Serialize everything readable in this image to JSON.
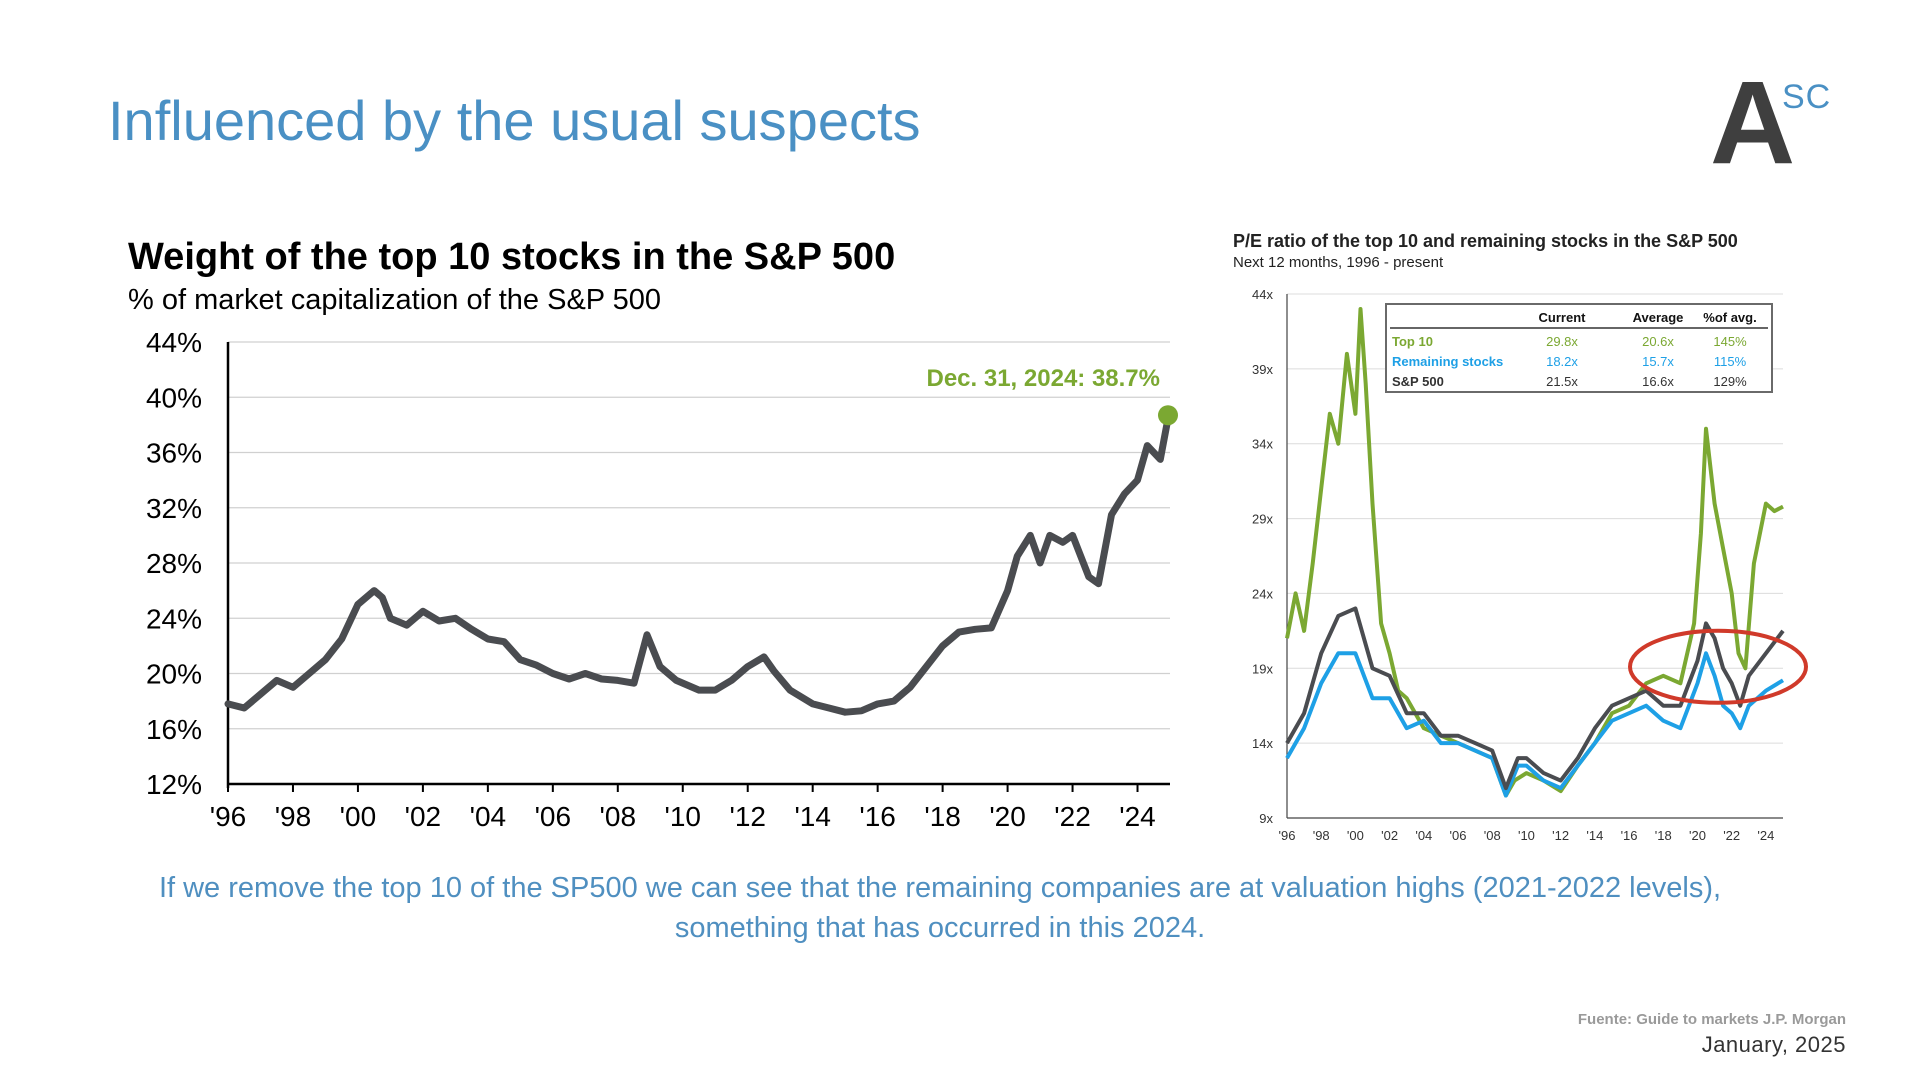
{
  "slide": {
    "title": "Influenced by the usual suspects",
    "logo_letter": "A",
    "logo_superscript": "SC",
    "caption": "If we remove the top 10 of the SP500 we can see that the remaining companies are at valuation highs (2021-2022 levels), something that has occurred in this 2024.",
    "source": "Fuente: Guide to markets J.P. Morgan",
    "date": "January, 2025",
    "colors": {
      "title": "#4a90c4",
      "caption": "#4f8fc0",
      "weight_line": "#4a4c50",
      "top10": "#7ba832",
      "remaining": "#1ea0e6",
      "sp500": "#4a4c50",
      "highlight_ellipse": "#d03a2a"
    }
  },
  "chart_data": [
    {
      "type": "line",
      "title": "Weight of the top 10 stocks in the S&P 500",
      "subtitle": "% of market capitalization of the S&P 500",
      "x_ticks": [
        "'96",
        "'98",
        "'00",
        "'02",
        "'04",
        "'06",
        "'08",
        "'10",
        "'12",
        "'14",
        "'16",
        "'18",
        "'20",
        "'22",
        "'24"
      ],
      "y_ticks": [
        "44%",
        "40%",
        "36%",
        "32%",
        "28%",
        "24%",
        "20%",
        "16%",
        "12%"
      ],
      "ylim": [
        12,
        44
      ],
      "xlim": [
        1996,
        2025
      ],
      "grid": true,
      "annotation": "Dec. 31, 2024: 38.7%",
      "series": [
        {
          "x": [
            1996,
            1996.5,
            1997,
            1997.5,
            1998,
            1998.5,
            1999,
            1999.5,
            2000,
            2000.5,
            2000.75,
            2001,
            2001.5,
            2002,
            2002.5,
            2003,
            2003.5,
            2004,
            2004.5,
            2005,
            2005.5,
            2006,
            2006.5,
            2007,
            2007.5,
            2008,
            2008.5,
            2008.9,
            2009.3,
            2009.8,
            2010.5,
            2011,
            2011.5,
            2012,
            2012.5,
            2012.8,
            2013.3,
            2014,
            2014.5,
            2015,
            2015.5,
            2016,
            2016.5,
            2017,
            2017.5,
            2018,
            2018.5,
            2019,
            2019.5,
            2020,
            2020.3,
            2020.7,
            2021,
            2021.3,
            2021.7,
            2022,
            2022.5,
            2022.8,
            2023.2,
            2023.6,
            2024,
            2024.3,
            2024.7,
            2024.9,
            2025
          ],
          "values": [
            17.8,
            17.5,
            18.5,
            19.5,
            19,
            20,
            21,
            22.5,
            25,
            26,
            25.5,
            24,
            23.5,
            24.5,
            23.8,
            24,
            23.2,
            22.5,
            22.3,
            21,
            20.6,
            20,
            19.6,
            20,
            19.6,
            19.5,
            19.3,
            22.8,
            20.5,
            19.5,
            18.8,
            18.8,
            19.5,
            20.5,
            21.2,
            20.2,
            18.8,
            17.8,
            17.5,
            17.2,
            17.3,
            17.8,
            18,
            19,
            20.5,
            22,
            23,
            23.2,
            23.3,
            26,
            28.5,
            30,
            28,
            30,
            29.5,
            30,
            27,
            26.5,
            31.5,
            33,
            34,
            36.5,
            35.5,
            38,
            38.7
          ]
        }
      ]
    },
    {
      "type": "line",
      "title": "P/E ratio of the top 10 and remaining stocks in the S&P 500",
      "subtitle": "Next 12 months, 1996 - present",
      "x_ticks": [
        "'96",
        "'98",
        "'00",
        "'02",
        "'04",
        "'06",
        "'08",
        "'10",
        "'12",
        "'14",
        "'16",
        "'18",
        "'20",
        "'22",
        "'24"
      ],
      "y_ticks": [
        "44x",
        "39x",
        "34x",
        "29x",
        "24x",
        "19x",
        "14x",
        "9x"
      ],
      "ylim": [
        9,
        44
      ],
      "xlim": [
        1996,
        2025
      ],
      "grid": true,
      "table": {
        "headers": [
          "",
          "Current",
          "Average",
          "%of avg."
        ],
        "rows": [
          {
            "label": "Top 10",
            "current": "29.8x",
            "average": "20.6x",
            "pct": "145%"
          },
          {
            "label": "Remaining stocks",
            "current": "18.2x",
            "average": "15.7x",
            "pct": "115%"
          },
          {
            "label": "S&P 500",
            "current": "21.5x",
            "average": "16.6x",
            "pct": "129%"
          }
        ]
      },
      "series": [
        {
          "label": "Top 10",
          "x": [
            1996,
            1996.5,
            1997,
            1997.5,
            1998,
            1998.5,
            1999,
            1999.5,
            2000,
            2000.3,
            2000.6,
            2001,
            2001.5,
            2002,
            2002.5,
            2003,
            2004,
            2005,
            2006,
            2007,
            2008,
            2008.8,
            2009.3,
            2010,
            2011,
            2012,
            2013,
            2014,
            2015,
            2016,
            2017,
            2018,
            2019,
            2019.8,
            2020.2,
            2020.5,
            2021,
            2021.5,
            2022,
            2022.4,
            2022.8,
            2023.3,
            2024,
            2024.5,
            2025
          ],
          "values": [
            21,
            24,
            21.5,
            26,
            31,
            36,
            34,
            40,
            36,
            43,
            38,
            30,
            22,
            20,
            17.5,
            17,
            15,
            14.5,
            14,
            13.5,
            13,
            10.5,
            11.5,
            12,
            11.5,
            10.8,
            12.5,
            14,
            16,
            16.5,
            18,
            18.5,
            18,
            22,
            28,
            35,
            30,
            27,
            24,
            20,
            19,
            26,
            30,
            29.5,
            29.8
          ]
        },
        {
          "label": "Remaining stocks",
          "x": [
            1996,
            1997,
            1998,
            1999,
            2000,
            2001,
            2002,
            2003,
            2004,
            2005,
            2006,
            2007,
            2008,
            2008.8,
            2009.5,
            2010,
            2011,
            2012,
            2013,
            2014,
            2015,
            2016,
            2017,
            2018,
            2019,
            2020,
            2020.5,
            2021,
            2021.5,
            2022,
            2022.5,
            2023,
            2024,
            2025
          ],
          "values": [
            13,
            15,
            18,
            20,
            20,
            17,
            17,
            15,
            15.5,
            14,
            14,
            13.5,
            13,
            10.5,
            12.5,
            12.5,
            11.5,
            11,
            12.5,
            14,
            15.5,
            16,
            16.5,
            15.5,
            15,
            18,
            20,
            18.5,
            16.5,
            16,
            15,
            16.5,
            17.5,
            18.2
          ]
        },
        {
          "label": "S&P 500",
          "x": [
            1996,
            1997,
            1998,
            1999,
            2000,
            2001,
            2002,
            2003,
            2004,
            2005,
            2006,
            2007,
            2008,
            2008.8,
            2009.5,
            2010,
            2011,
            2012,
            2013,
            2014,
            2015,
            2016,
            2017,
            2018,
            2019,
            2020,
            2020.5,
            2021,
            2021.5,
            2022,
            2022.5,
            2023,
            2024,
            2025
          ],
          "values": [
            14,
            16,
            20,
            22.5,
            23,
            19,
            18.5,
            16,
            16,
            14.5,
            14.5,
            14,
            13.5,
            11,
            13,
            13,
            12,
            11.5,
            13,
            15,
            16.5,
            17,
            17.5,
            16.5,
            16.5,
            19.5,
            22,
            21,
            19,
            18,
            16.5,
            18.5,
            20,
            21.5
          ]
        }
      ]
    }
  ]
}
